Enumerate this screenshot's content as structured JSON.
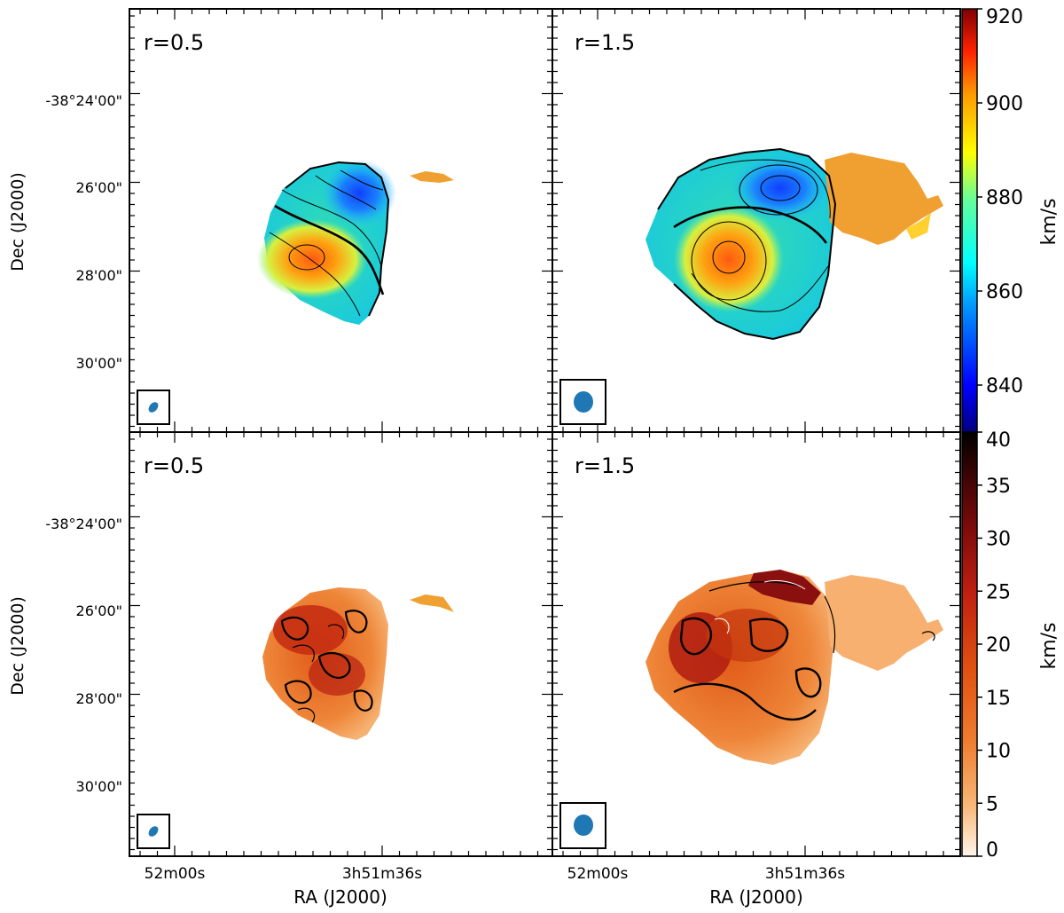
{
  "chart_data": {
    "type": "heatmap",
    "layout": "2x2 panel grid, shared axes",
    "panels": [
      {
        "row": "top",
        "col": "left",
        "label": "r=0.5",
        "map": "velocity field (moment 1)",
        "colorbar": "velocity",
        "beam": "small"
      },
      {
        "row": "top",
        "col": "right",
        "label": "r=1.5",
        "map": "velocity field (moment 1)",
        "colorbar": "velocity",
        "beam": "large"
      },
      {
        "row": "bottom",
        "col": "left",
        "label": "r=0.5",
        "map": "velocity dispersion (moment 2)",
        "colorbar": "dispersion",
        "beam": "small"
      },
      {
        "row": "bottom",
        "col": "right",
        "label": "r=1.5",
        "map": "velocity dispersion (moment 2)",
        "colorbar": "dispersion",
        "beam": "large"
      }
    ],
    "xlabel": "RA (J2000)",
    "ylabel": "Dec (J2000)",
    "x_ticks": [
      "52m00s",
      "3h51m36s"
    ],
    "y_ticks": [
      "-38°24'00\"",
      "26'00\"",
      "28'00\"",
      "30'00\""
    ],
    "colorbars": [
      {
        "name": "velocity",
        "label": "km/s",
        "range": [
          830,
          920
        ],
        "ticks": [
          840,
          860,
          880,
          900,
          920
        ],
        "tick_labels": [
          "840",
          "860",
          "880",
          "900",
          "920"
        ],
        "colormap": "jet"
      },
      {
        "name": "dispersion",
        "label": "km/s",
        "range": [
          0,
          40
        ],
        "ticks": [
          0,
          5,
          10,
          15,
          20,
          25,
          30,
          35,
          40
        ],
        "tick_labels": [
          "0",
          "5",
          "10",
          "15",
          "20",
          "25",
          "30",
          "35",
          "40"
        ],
        "colormap": "gist_heat_r"
      }
    ],
    "velocity_field": {
      "receding_peak_kms": 905,
      "approaching_min_kms": 838,
      "systemic_kms": 870
    }
  }
}
